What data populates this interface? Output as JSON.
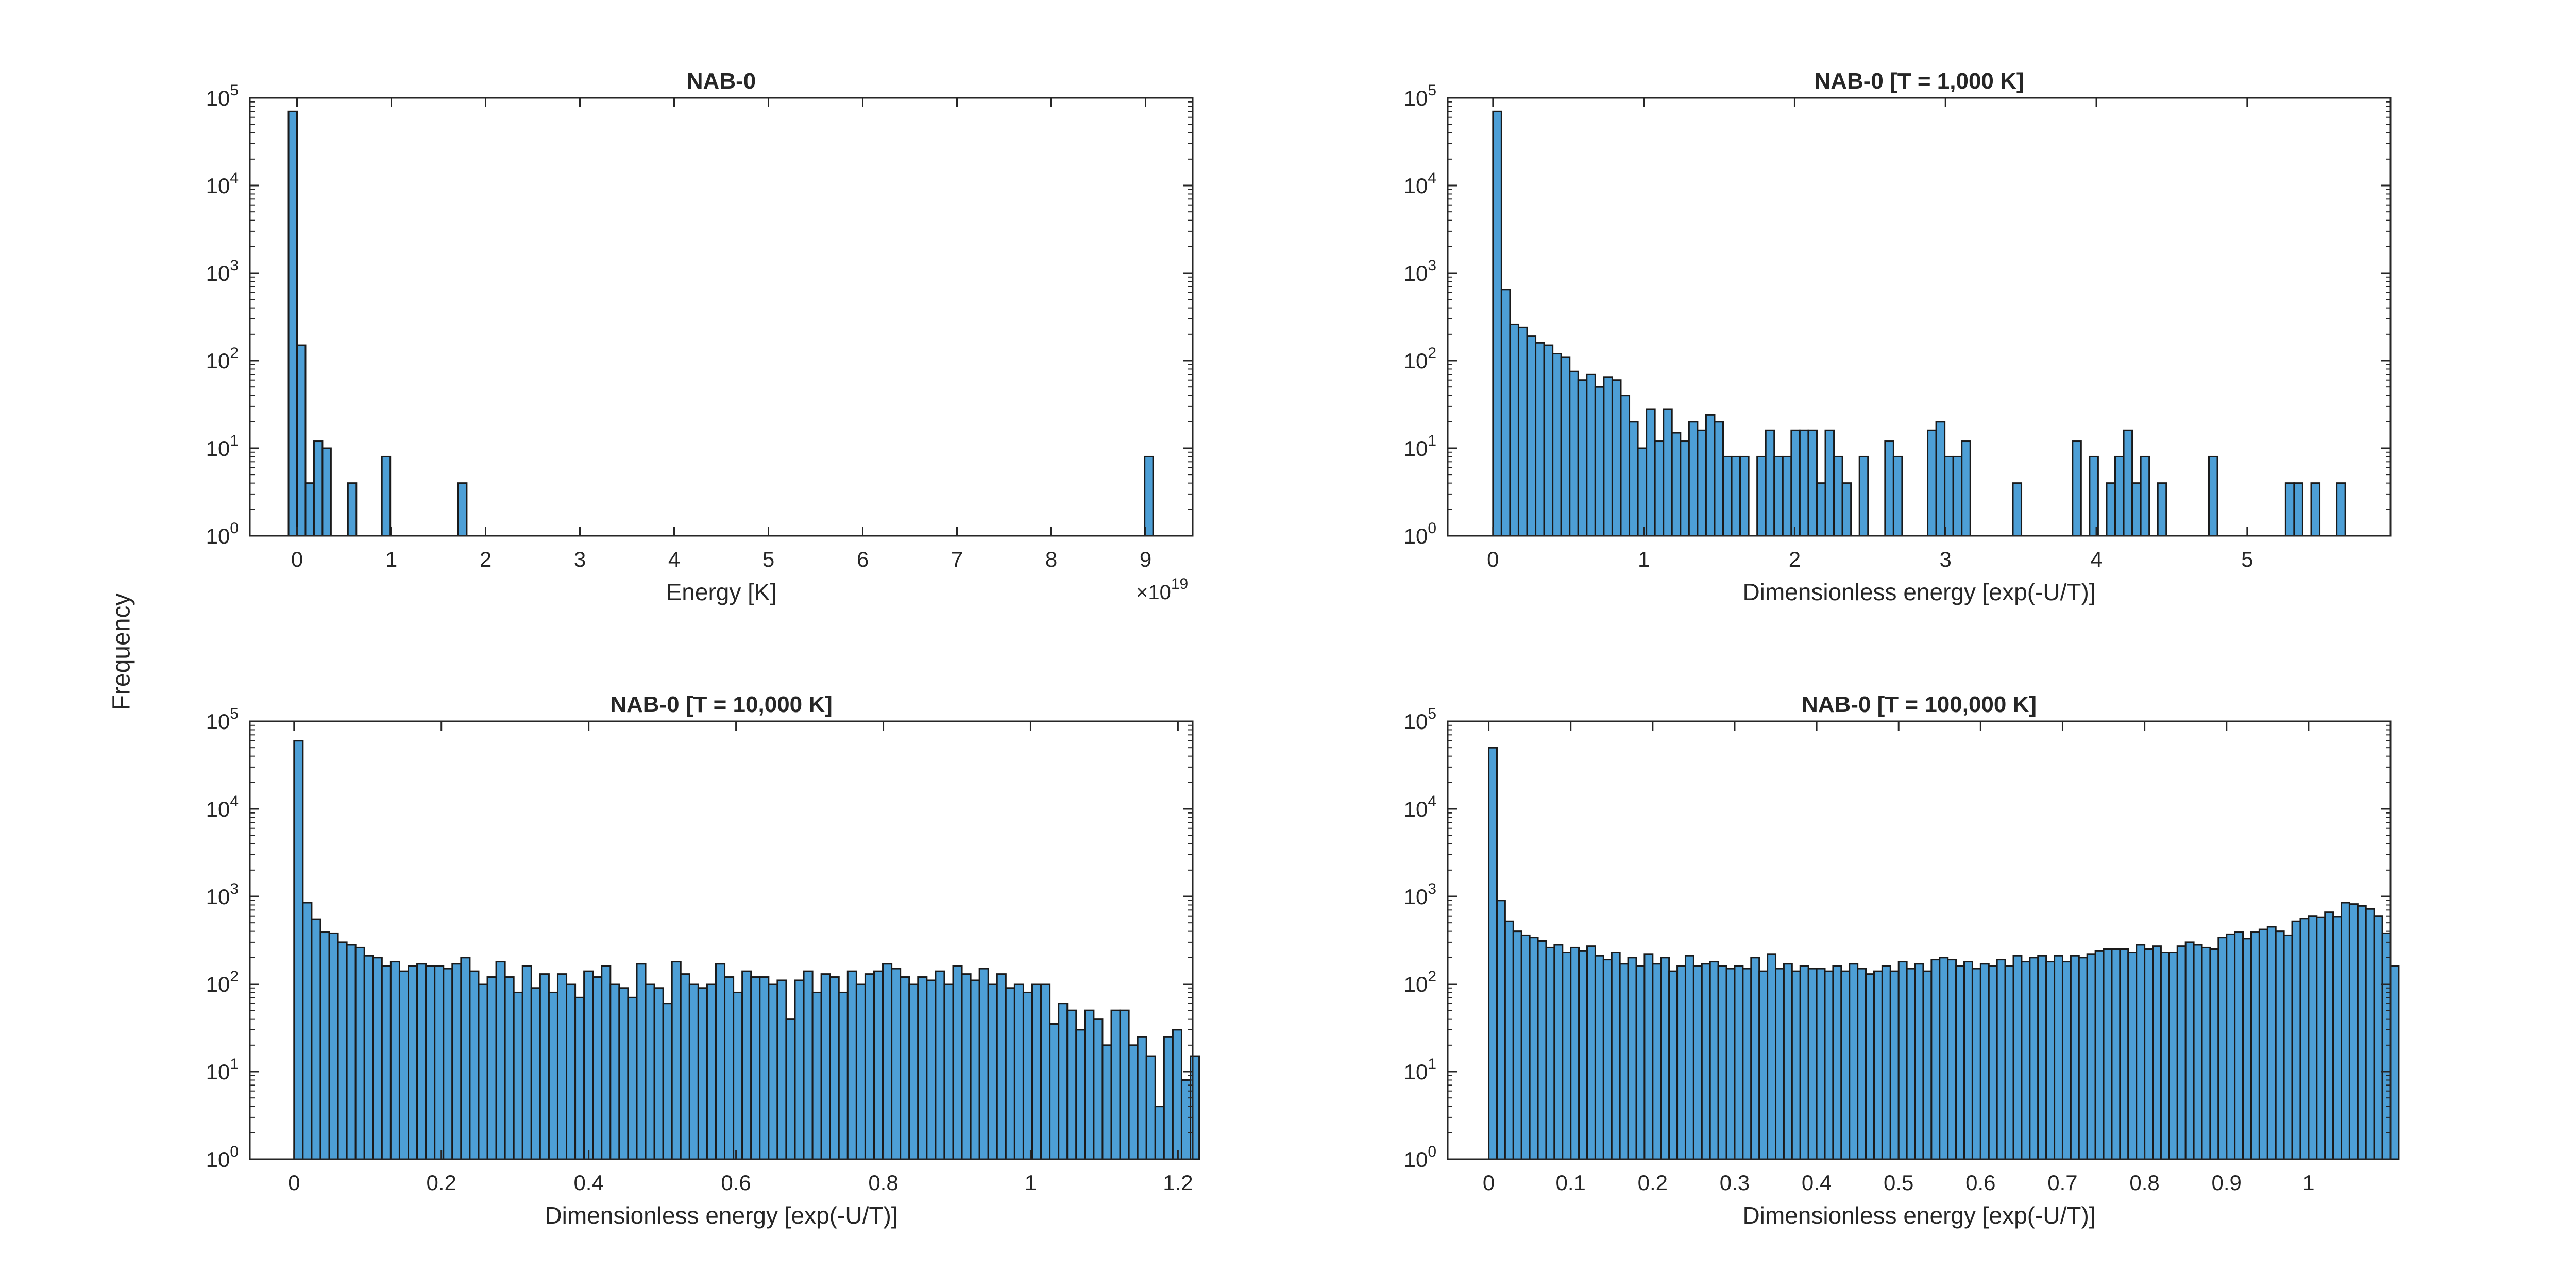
{
  "figure": {
    "ylabel": "Frequency",
    "bar_color": "#4d9fd6",
    "edge_color": "#1a1a1a",
    "axis_color": "#262626"
  },
  "chart_data": [
    {
      "type": "bar",
      "title": "NAB-0",
      "xlabel": "Energy [K]",
      "ylabel": "Frequency",
      "xscale": "linear",
      "yscale": "log",
      "xlim": [
        -0.5,
        9.5
      ],
      "ylim": [
        1,
        100000
      ],
      "xticks": [
        0,
        1,
        2,
        3,
        4,
        5,
        6,
        7,
        8,
        9
      ],
      "xtick_labels": [
        "0",
        "1",
        "2",
        "3",
        "4",
        "5",
        "6",
        "7",
        "8",
        "9"
      ],
      "x_exponent_label": "×10",
      "x_exponent": "19",
      "yticks": [
        1,
        10,
        100,
        1000,
        10000,
        100000
      ],
      "ytick_exponents": [
        "0",
        "1",
        "2",
        "3",
        "4",
        "5"
      ],
      "bin_width": 0.09,
      "bins_start": -0.09,
      "bins": [
        {
          "x": -0.09,
          "y": 70000
        },
        {
          "x": 0.0,
          "y": 150
        },
        {
          "x": 0.09,
          "y": 4
        },
        {
          "x": 0.18,
          "y": 12
        },
        {
          "x": 0.27,
          "y": 10
        },
        {
          "x": 0.54,
          "y": 4
        },
        {
          "x": 0.9,
          "y": 8
        },
        {
          "x": 1.71,
          "y": 4
        },
        {
          "x": 8.99,
          "y": 8
        }
      ],
      "grid": false
    },
    {
      "type": "bar",
      "title": "NAB-0 [T = 1,000 K]",
      "xlabel": "Dimensionless energy [exp(-U/T)]",
      "ylabel": "Frequency",
      "xscale": "linear",
      "yscale": "log",
      "xlim": [
        -0.3,
        5.95
      ],
      "ylim": [
        1,
        100000
      ],
      "xticks": [
        0,
        1,
        2,
        3,
        4,
        5
      ],
      "xtick_labels": [
        "0",
        "1",
        "2",
        "3",
        "4",
        "5"
      ],
      "yticks": [
        1,
        10,
        100,
        1000,
        10000,
        100000
      ],
      "ytick_exponents": [
        "0",
        "1",
        "2",
        "3",
        "4",
        "5"
      ],
      "bin_width": 0.0565,
      "bins_start": 0,
      "counts": [
        70000,
        650,
        260,
        240,
        190,
        160,
        150,
        120,
        110,
        75,
        60,
        70,
        50,
        65,
        60,
        40,
        20,
        10,
        28,
        12,
        28,
        15,
        12,
        20,
        16,
        24,
        20,
        8,
        8,
        8,
        0,
        8,
        16,
        8,
        8,
        16,
        16,
        16,
        4,
        16,
        8,
        4,
        0,
        8,
        0,
        0,
        12,
        8,
        0,
        0,
        0,
        16,
        20,
        8,
        8,
        12,
        0,
        0,
        0,
        0,
        0,
        4,
        0,
        0,
        0,
        0,
        0,
        0,
        12,
        0,
        8,
        0,
        4,
        8,
        16,
        4,
        8,
        0,
        4,
        0,
        0,
        0,
        0,
        0,
        8,
        0,
        0,
        0,
        0,
        0,
        0,
        0,
        0,
        4,
        4,
        0,
        4,
        0,
        0,
        4
      ],
      "grid": false
    },
    {
      "type": "bar",
      "title": "NAB-0 [T = 10,000 K]",
      "xlabel": "Dimensionless energy [exp(-U/T)]",
      "ylabel": "Frequency",
      "xscale": "linear",
      "yscale": "log",
      "xlim": [
        -0.06,
        1.22
      ],
      "ylim": [
        1,
        100000
      ],
      "xticks": [
        0,
        0.2,
        0.4,
        0.6,
        0.8,
        1,
        1.2
      ],
      "xtick_labels": [
        "0",
        "0.2",
        "0.4",
        "0.6",
        "0.8",
        "1",
        "1.2"
      ],
      "yticks": [
        1,
        10,
        100,
        1000,
        10000,
        100000
      ],
      "ytick_exponents": [
        "0",
        "1",
        "2",
        "3",
        "4",
        "5"
      ],
      "bin_width": 0.01193,
      "bins_start": 0,
      "counts": [
        60000,
        850,
        550,
        390,
        380,
        300,
        280,
        260,
        210,
        200,
        160,
        180,
        140,
        160,
        170,
        160,
        160,
        150,
        170,
        200,
        140,
        100,
        120,
        180,
        120,
        80,
        160,
        90,
        130,
        80,
        130,
        100,
        70,
        140,
        120,
        160,
        100,
        90,
        70,
        170,
        100,
        90,
        60,
        180,
        130,
        100,
        90,
        100,
        170,
        120,
        80,
        140,
        120,
        120,
        100,
        110,
        40,
        110,
        140,
        80,
        130,
        120,
        80,
        140,
        100,
        130,
        140,
        170,
        150,
        120,
        100,
        120,
        110,
        140,
        100,
        160,
        130,
        110,
        150,
        100,
        130,
        90,
        100,
        80,
        100,
        100,
        35,
        60,
        50,
        30,
        50,
        40,
        20,
        50,
        50,
        20,
        25,
        15,
        4,
        25,
        30,
        8,
        15
      ],
      "grid": false
    },
    {
      "type": "bar",
      "title": "NAB-0 [T = 100,000 K]",
      "xlabel": "Dimensionless energy [exp(-U/T)]",
      "ylabel": "Frequency",
      "xscale": "linear",
      "yscale": "log",
      "xlim": [
        -0.05,
        1.1
      ],
      "ylim": [
        1,
        100000
      ],
      "xticks": [
        0,
        0.1,
        0.2,
        0.3,
        0.4,
        0.5,
        0.6,
        0.7,
        0.8,
        0.9,
        1
      ],
      "xtick_labels": [
        "0",
        "0.1",
        "0.2",
        "0.3",
        "0.4",
        "0.5",
        "0.6",
        "0.7",
        "0.8",
        "0.9",
        "1"
      ],
      "yticks": [
        1,
        10,
        100,
        1000,
        10000,
        100000
      ],
      "ytick_exponents": [
        "0",
        "1",
        "2",
        "3",
        "4",
        "5"
      ],
      "bin_width": 0.01,
      "bins_start": 0,
      "counts": [
        50000,
        900,
        520,
        400,
        360,
        340,
        310,
        260,
        280,
        230,
        260,
        240,
        270,
        210,
        190,
        230,
        170,
        200,
        160,
        220,
        170,
        200,
        140,
        160,
        210,
        160,
        170,
        180,
        160,
        150,
        160,
        150,
        200,
        140,
        220,
        150,
        170,
        140,
        160,
        150,
        150,
        140,
        160,
        140,
        170,
        150,
        130,
        140,
        160,
        140,
        180,
        150,
        170,
        140,
        190,
        200,
        190,
        160,
        180,
        150,
        170,
        160,
        190,
        160,
        210,
        180,
        200,
        210,
        180,
        210,
        180,
        210,
        200,
        220,
        240,
        250,
        250,
        250,
        230,
        280,
        250,
        270,
        230,
        230,
        270,
        300,
        280,
        260,
        250,
        340,
        370,
        390,
        330,
        390,
        420,
        450,
        400,
        360,
        520,
        560,
        600,
        580,
        660,
        590,
        850,
        820,
        780,
        720,
        600,
        380,
        160
      ],
      "grid": false
    }
  ]
}
